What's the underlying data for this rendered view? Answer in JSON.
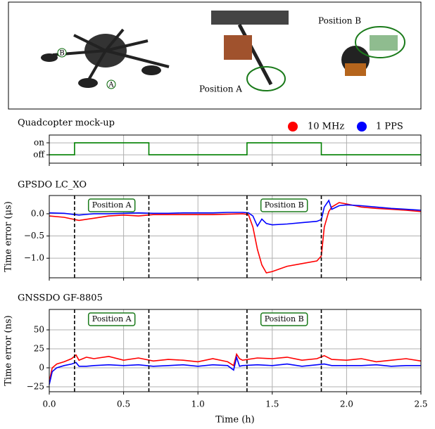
{
  "image_panel": {
    "labels": [
      "Position A",
      "Position B"
    ],
    "markers": [
      "A",
      "B"
    ]
  },
  "chart_data": [
    {
      "type": "line",
      "title": "Quadcopter mock-up",
      "x": [
        0,
        0.17,
        0.17,
        0.67,
        0.67,
        1.33,
        1.33,
        1.83,
        1.83,
        2.5
      ],
      "series": [
        {
          "color": "#008000",
          "values": [
            0,
            0,
            1,
            1,
            0,
            0,
            1,
            1,
            0,
            0
          ]
        }
      ],
      "xlim": [
        0,
        2.5
      ],
      "xticks": [
        0,
        0.5,
        1,
        1.5,
        2,
        2.5
      ],
      "ylim": [
        -0.7,
        1.65
      ],
      "yticks": [
        {
          "value": 1,
          "label": "on"
        },
        {
          "value": 0,
          "label": "off"
        }
      ],
      "grid": true
    },
    {
      "type": "line",
      "title": "GPSDO LC_XO",
      "ylabel": "Time error (μs)",
      "x": [
        0,
        0.1,
        0.2,
        0.3,
        0.4,
        0.5,
        0.6,
        0.7,
        0.8,
        0.9,
        1.0,
        1.1,
        1.2,
        1.3,
        1.34,
        1.37,
        1.4,
        1.43,
        1.46,
        1.5,
        1.6,
        1.7,
        1.8,
        1.83,
        1.85,
        1.88,
        1.9,
        1.95,
        2.0,
        2.1,
        2.2,
        2.3,
        2.4,
        2.5
      ],
      "series": [
        {
          "name": "10 MHz",
          "color": "#ff0000",
          "values": [
            -0.05,
            -0.08,
            -0.15,
            -0.1,
            -0.05,
            -0.03,
            -0.05,
            -0.02,
            -0.02,
            -0.02,
            -0.02,
            -0.02,
            -0.01,
            0.0,
            -0.02,
            -0.3,
            -0.8,
            -1.15,
            -1.33,
            -1.3,
            -1.18,
            -1.12,
            -1.06,
            -0.95,
            -0.3,
            0.05,
            0.15,
            0.25,
            0.22,
            0.15,
            0.12,
            0.1,
            0.08,
            0.05
          ]
        },
        {
          "name": "1 PPS",
          "color": "#0000ff",
          "values": [
            0.02,
            0.01,
            -0.03,
            0.0,
            0.0,
            0.01,
            0.02,
            0.01,
            0.01,
            0.02,
            0.02,
            0.02,
            0.03,
            0.03,
            0.02,
            -0.05,
            -0.28,
            -0.12,
            -0.22,
            -0.25,
            -0.23,
            -0.2,
            -0.17,
            -0.13,
            0.15,
            0.3,
            0.1,
            0.18,
            0.2,
            0.18,
            0.15,
            0.12,
            0.1,
            0.08
          ]
        }
      ],
      "vlines": [
        0.17,
        0.67,
        1.33,
        1.83
      ],
      "annotations": [
        "Position A",
        "Position B"
      ],
      "xlim": [
        0,
        2.5
      ],
      "xticks": [
        0,
        0.5,
        1,
        1.5,
        2,
        2.5
      ],
      "ylim": [
        -1.44,
        0.41
      ],
      "yticks": [
        {
          "value": 0,
          "label": "0.0"
        },
        {
          "value": -0.5,
          "label": "−0.5"
        },
        {
          "value": -1,
          "label": "−1.0"
        }
      ],
      "grid": true
    },
    {
      "type": "line",
      "title": "GNSSDO GF-8805",
      "ylabel": "Time error (ns)",
      "xlabel": "Time (h)",
      "x": [
        0,
        0.02,
        0.05,
        0.1,
        0.15,
        0.18,
        0.2,
        0.25,
        0.3,
        0.4,
        0.5,
        0.6,
        0.7,
        0.8,
        0.9,
        1.0,
        1.1,
        1.2,
        1.24,
        1.26,
        1.28,
        1.3,
        1.4,
        1.5,
        1.6,
        1.7,
        1.8,
        1.85,
        1.9,
        2.0,
        2.1,
        2.2,
        2.3,
        2.4,
        2.5
      ],
      "series": [
        {
          "name": "10 MHz",
          "color": "#ff0000",
          "values": [
            -18,
            0,
            5,
            8,
            12,
            17,
            10,
            14,
            12,
            15,
            10,
            13,
            9,
            11,
            10,
            8,
            12,
            8,
            3,
            18,
            12,
            10,
            13,
            12,
            14,
            10,
            12,
            16,
            11,
            10,
            12,
            8,
            10,
            12,
            9
          ]
        },
        {
          "name": "1 PPS",
          "color": "#0000ff",
          "values": [
            -22,
            -5,
            0,
            3,
            5,
            7,
            2,
            2,
            3,
            4,
            3,
            4,
            2,
            3,
            4,
            2,
            4,
            3,
            -3,
            14,
            2,
            3,
            4,
            3,
            5,
            2,
            4,
            5,
            3,
            3,
            3,
            4,
            2,
            3,
            3
          ]
        }
      ],
      "vlines": [
        0.17,
        0.67,
        1.33,
        1.83
      ],
      "annotations": [
        "Position A",
        "Position B"
      ],
      "xlim": [
        0,
        2.5
      ],
      "xticks": [
        {
          "value": 0,
          "label": "0.0"
        },
        {
          "value": 0.5,
          "label": "0.5"
        },
        {
          "value": 1,
          "label": "1.0"
        },
        {
          "value": 1.5,
          "label": "1.5"
        },
        {
          "value": 2,
          "label": "2.0"
        },
        {
          "value": 2.5,
          "label": "2.5"
        }
      ],
      "ylim": [
        -31.5,
        76.9
      ],
      "yticks": [
        50,
        25,
        0,
        {
          "value": -25,
          "label": "−25"
        }
      ],
      "grid": true
    }
  ]
}
